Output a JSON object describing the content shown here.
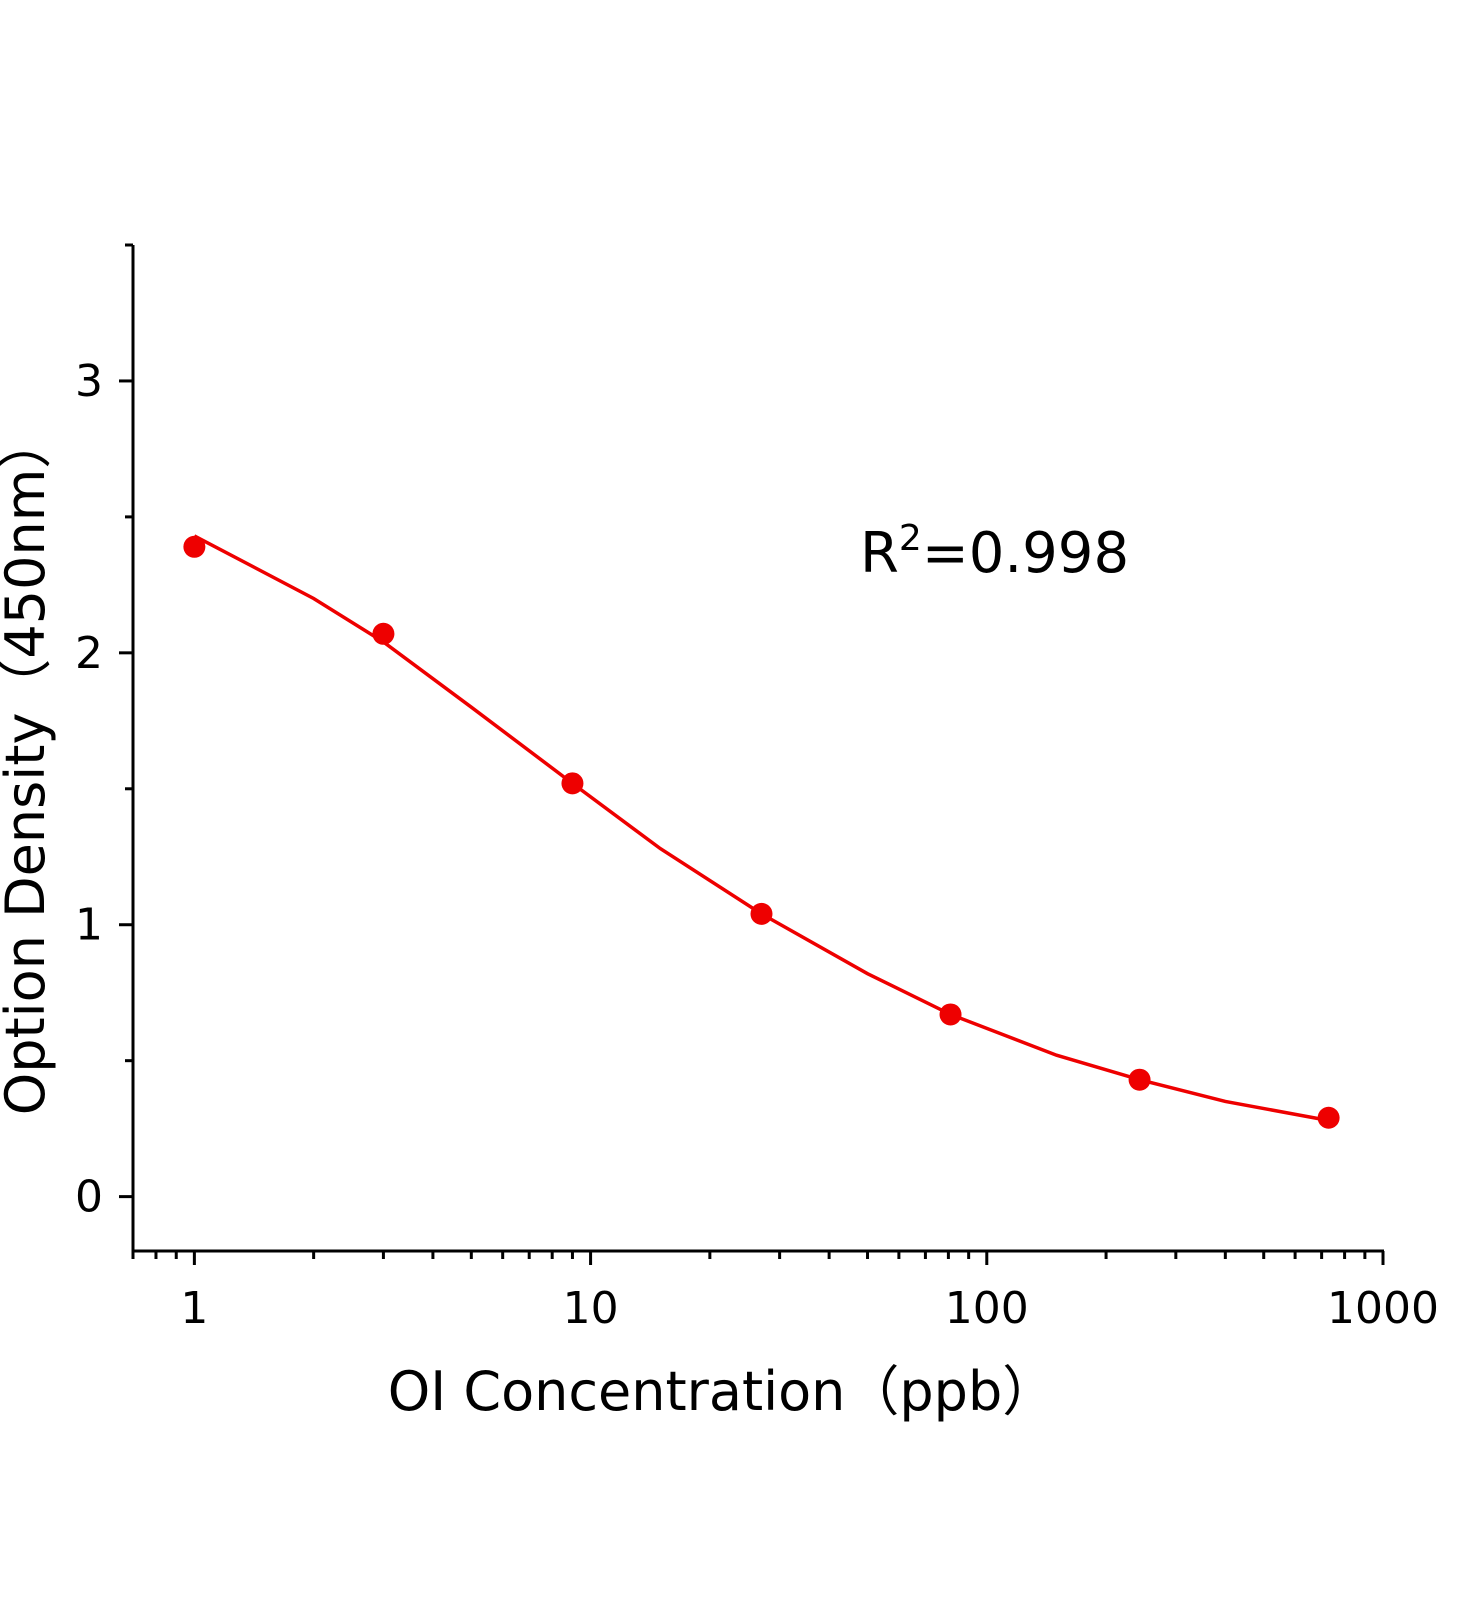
{
  "chart_data": {
    "type": "scatter",
    "x_label": "OI Concentration（ppb）",
    "y_label": "Option Density（450nm）",
    "annotation": {
      "base": "R",
      "superscript": "2",
      "rest": "=0.998"
    },
    "x_scale": "log",
    "xlim": [
      0.7,
      1000
    ],
    "xticks": [
      1,
      10,
      100,
      1000
    ],
    "ylim": [
      -0.2,
      3.5
    ],
    "yticks": [
      0,
      1,
      2,
      3
    ],
    "series": [
      {
        "type": "scatter",
        "color": "#ee0000",
        "x": [
          1,
          3,
          9,
          27,
          81,
          243,
          729
        ],
        "values": [
          2.39,
          2.07,
          1.52,
          1.04,
          0.67,
          0.43,
          0.29
        ]
      },
      {
        "type": "line",
        "color": "#ee0000",
        "x": [
          1,
          2,
          3,
          5,
          9,
          15,
          27,
          50,
          81,
          150,
          243,
          400,
          729
        ],
        "values": [
          2.43,
          2.2,
          2.04,
          1.8,
          1.52,
          1.28,
          1.04,
          0.82,
          0.67,
          0.52,
          0.43,
          0.35,
          0.28
        ]
      }
    ]
  }
}
